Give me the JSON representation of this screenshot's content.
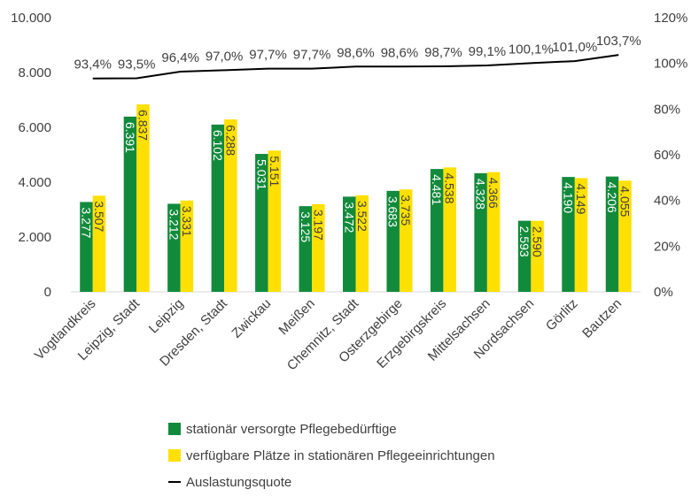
{
  "colors": {
    "series_1": "#128a3c",
    "series_2": "#ffe000",
    "line": "#000000",
    "axis_text": "#404040",
    "bar_label_light": "#ffffff",
    "bar_label_dark": "#404040"
  },
  "chart_data": {
    "type": "bar",
    "categories": [
      "Vogtlandkreis",
      "Leipzig, Stadt",
      "Leipzig",
      "Dresden, Stadt",
      "Zwickau",
      "Meißen",
      "Chemnitz, Stadt",
      "Osterzgebirge",
      "Erzgebirgskreis",
      "Mittelsachsen",
      "Nordsachsen",
      "Görlitz",
      "Bautzen"
    ],
    "series": [
      {
        "name": "stationär versorgte Pflegebedürftige",
        "values": [
          3277,
          6391,
          3212,
          6102,
          5031,
          3125,
          3472,
          3683,
          4481,
          4328,
          2593,
          4190,
          4206
        ],
        "labels": [
          "3.277",
          "6.391",
          "3.212",
          "6.102",
          "5.031",
          "3.125",
          "3.472",
          "3.683",
          "4.481",
          "4.328",
          "2.593",
          "4.190",
          "4.206"
        ]
      },
      {
        "name": "verfügbare Plätze in stationären Pflegeeinrichtungen",
        "values": [
          3507,
          6837,
          3331,
          6288,
          5151,
          3197,
          3522,
          3735,
          4538,
          4366,
          2590,
          4149,
          4055
        ],
        "labels": [
          "3.507",
          "6.837",
          "3.331",
          "6.288",
          "5.151",
          "3.197",
          "3.522",
          "3.735",
          "4.538",
          "4.366",
          "2.590",
          "4.149",
          "4.055"
        ]
      },
      {
        "name": "Auslastungsquote",
        "type": "line",
        "axis": "right",
        "values": [
          93.4,
          93.5,
          96.4,
          97.0,
          97.7,
          97.7,
          98.6,
          98.6,
          98.7,
          99.1,
          100.1,
          101.0,
          103.7
        ],
        "labels": [
          "93,4%",
          "93,5%",
          "96,4%",
          "97,0%",
          "97,7%",
          "97,7%",
          "98,6%",
          "98,6%",
          "98,7%",
          "99,1%",
          "100,1%",
          "101,0%",
          "103,7%"
        ]
      }
    ],
    "y_left": {
      "range": [
        0,
        10000
      ],
      "ticks": [
        "0",
        "2.000",
        "4.000",
        "6.000",
        "8.000",
        "10.000"
      ]
    },
    "y_right": {
      "range": [
        0,
        120
      ],
      "ticks": [
        "0%",
        "20%",
        "40%",
        "60%",
        "80%",
        "100%",
        "120%"
      ]
    },
    "grid": false,
    "legend_position": "bottom"
  }
}
